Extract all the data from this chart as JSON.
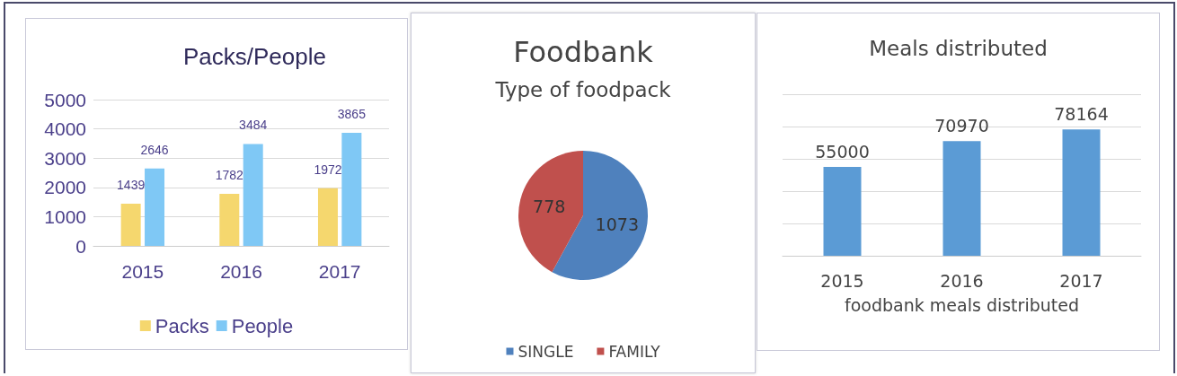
{
  "chart_data": [
    {
      "type": "bar",
      "title": "Packs/People",
      "categories": [
        "2015",
        "2016",
        "2017"
      ],
      "series": [
        {
          "name": "Packs",
          "color": "#f5d76e",
          "values": [
            1439,
            1782,
            1972
          ]
        },
        {
          "name": "People",
          "color": "#7fc8f5",
          "values": [
            2646,
            3484,
            3865
          ]
        }
      ],
      "ylim": [
        0,
        5000
      ],
      "yticks": [
        0,
        1000,
        2000,
        3000,
        4000,
        5000
      ],
      "grid": "y",
      "data_labels": true,
      "legend": "bottom"
    },
    {
      "type": "pie",
      "title": "Foodbank",
      "subtitle": "Type of foodpack",
      "categories": [
        "SINGLE",
        "FAMILY"
      ],
      "values": [
        1073,
        778
      ],
      "colors": [
        "#4f81bd",
        "#c0504d"
      ],
      "data_labels": true,
      "legend": "bottom"
    },
    {
      "type": "bar",
      "title": "Meals distributed",
      "xlabel": "foodbank meals distributed",
      "categories": [
        "2015",
        "2016",
        "2017"
      ],
      "values": [
        55000,
        70970,
        78164
      ],
      "color": "#5b9bd5",
      "ylim": [
        0,
        100000
      ],
      "yticks": [
        {
          "value": 0,
          "label": null
        },
        {
          "value": 20000,
          "label": null
        },
        {
          "value": 40000,
          "label": null
        },
        {
          "value": 60000,
          "label": null
        },
        {
          "value": 80000,
          "label": null
        },
        {
          "value": 100000,
          "label": null
        }
      ],
      "grid": "y",
      "tick_labels": "x",
      "data_labels": true
    }
  ]
}
